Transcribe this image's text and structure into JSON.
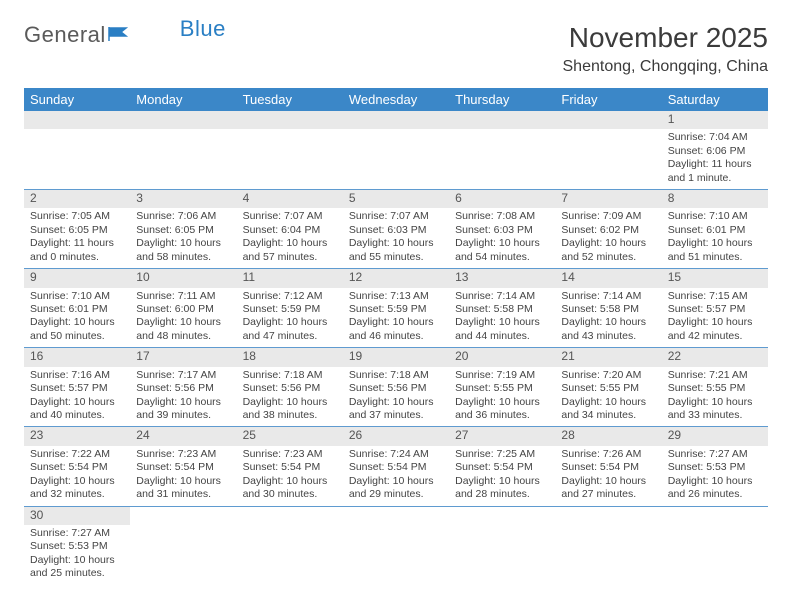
{
  "logo": {
    "general": "General",
    "blue": "Blue"
  },
  "header": {
    "title": "November 2025",
    "location": "Shentong, Chongqing, China"
  },
  "style": {
    "header_bg": "#3b87c8",
    "header_text": "#ffffff",
    "row_border": "#5f9bd0",
    "daynum_bg": "#e9e9e9",
    "body_text": "#444444",
    "title_color": "#3b3b3b",
    "logo_gray": "#5a5a5a",
    "logo_blue": "#2a7fc4",
    "font_family": "Arial"
  },
  "days_of_week": [
    "Sunday",
    "Monday",
    "Tuesday",
    "Wednesday",
    "Thursday",
    "Friday",
    "Saturday"
  ],
  "weeks": [
    [
      null,
      null,
      null,
      null,
      null,
      null,
      {
        "n": "1",
        "sr": "Sunrise: 7:04 AM",
        "ss": "Sunset: 6:06 PM",
        "dl": "Daylight: 11 hours and 1 minute."
      }
    ],
    [
      {
        "n": "2",
        "sr": "Sunrise: 7:05 AM",
        "ss": "Sunset: 6:05 PM",
        "dl": "Daylight: 11 hours and 0 minutes."
      },
      {
        "n": "3",
        "sr": "Sunrise: 7:06 AM",
        "ss": "Sunset: 6:05 PM",
        "dl": "Daylight: 10 hours and 58 minutes."
      },
      {
        "n": "4",
        "sr": "Sunrise: 7:07 AM",
        "ss": "Sunset: 6:04 PM",
        "dl": "Daylight: 10 hours and 57 minutes."
      },
      {
        "n": "5",
        "sr": "Sunrise: 7:07 AM",
        "ss": "Sunset: 6:03 PM",
        "dl": "Daylight: 10 hours and 55 minutes."
      },
      {
        "n": "6",
        "sr": "Sunrise: 7:08 AM",
        "ss": "Sunset: 6:03 PM",
        "dl": "Daylight: 10 hours and 54 minutes."
      },
      {
        "n": "7",
        "sr": "Sunrise: 7:09 AM",
        "ss": "Sunset: 6:02 PM",
        "dl": "Daylight: 10 hours and 52 minutes."
      },
      {
        "n": "8",
        "sr": "Sunrise: 7:10 AM",
        "ss": "Sunset: 6:01 PM",
        "dl": "Daylight: 10 hours and 51 minutes."
      }
    ],
    [
      {
        "n": "9",
        "sr": "Sunrise: 7:10 AM",
        "ss": "Sunset: 6:01 PM",
        "dl": "Daylight: 10 hours and 50 minutes."
      },
      {
        "n": "10",
        "sr": "Sunrise: 7:11 AM",
        "ss": "Sunset: 6:00 PM",
        "dl": "Daylight: 10 hours and 48 minutes."
      },
      {
        "n": "11",
        "sr": "Sunrise: 7:12 AM",
        "ss": "Sunset: 5:59 PM",
        "dl": "Daylight: 10 hours and 47 minutes."
      },
      {
        "n": "12",
        "sr": "Sunrise: 7:13 AM",
        "ss": "Sunset: 5:59 PM",
        "dl": "Daylight: 10 hours and 46 minutes."
      },
      {
        "n": "13",
        "sr": "Sunrise: 7:14 AM",
        "ss": "Sunset: 5:58 PM",
        "dl": "Daylight: 10 hours and 44 minutes."
      },
      {
        "n": "14",
        "sr": "Sunrise: 7:14 AM",
        "ss": "Sunset: 5:58 PM",
        "dl": "Daylight: 10 hours and 43 minutes."
      },
      {
        "n": "15",
        "sr": "Sunrise: 7:15 AM",
        "ss": "Sunset: 5:57 PM",
        "dl": "Daylight: 10 hours and 42 minutes."
      }
    ],
    [
      {
        "n": "16",
        "sr": "Sunrise: 7:16 AM",
        "ss": "Sunset: 5:57 PM",
        "dl": "Daylight: 10 hours and 40 minutes."
      },
      {
        "n": "17",
        "sr": "Sunrise: 7:17 AM",
        "ss": "Sunset: 5:56 PM",
        "dl": "Daylight: 10 hours and 39 minutes."
      },
      {
        "n": "18",
        "sr": "Sunrise: 7:18 AM",
        "ss": "Sunset: 5:56 PM",
        "dl": "Daylight: 10 hours and 38 minutes."
      },
      {
        "n": "19",
        "sr": "Sunrise: 7:18 AM",
        "ss": "Sunset: 5:56 PM",
        "dl": "Daylight: 10 hours and 37 minutes."
      },
      {
        "n": "20",
        "sr": "Sunrise: 7:19 AM",
        "ss": "Sunset: 5:55 PM",
        "dl": "Daylight: 10 hours and 36 minutes."
      },
      {
        "n": "21",
        "sr": "Sunrise: 7:20 AM",
        "ss": "Sunset: 5:55 PM",
        "dl": "Daylight: 10 hours and 34 minutes."
      },
      {
        "n": "22",
        "sr": "Sunrise: 7:21 AM",
        "ss": "Sunset: 5:55 PM",
        "dl": "Daylight: 10 hours and 33 minutes."
      }
    ],
    [
      {
        "n": "23",
        "sr": "Sunrise: 7:22 AM",
        "ss": "Sunset: 5:54 PM",
        "dl": "Daylight: 10 hours and 32 minutes."
      },
      {
        "n": "24",
        "sr": "Sunrise: 7:23 AM",
        "ss": "Sunset: 5:54 PM",
        "dl": "Daylight: 10 hours and 31 minutes."
      },
      {
        "n": "25",
        "sr": "Sunrise: 7:23 AM",
        "ss": "Sunset: 5:54 PM",
        "dl": "Daylight: 10 hours and 30 minutes."
      },
      {
        "n": "26",
        "sr": "Sunrise: 7:24 AM",
        "ss": "Sunset: 5:54 PM",
        "dl": "Daylight: 10 hours and 29 minutes."
      },
      {
        "n": "27",
        "sr": "Sunrise: 7:25 AM",
        "ss": "Sunset: 5:54 PM",
        "dl": "Daylight: 10 hours and 28 minutes."
      },
      {
        "n": "28",
        "sr": "Sunrise: 7:26 AM",
        "ss": "Sunset: 5:54 PM",
        "dl": "Daylight: 10 hours and 27 minutes."
      },
      {
        "n": "29",
        "sr": "Sunrise: 7:27 AM",
        "ss": "Sunset: 5:53 PM",
        "dl": "Daylight: 10 hours and 26 minutes."
      }
    ],
    [
      {
        "n": "30",
        "sr": "Sunrise: 7:27 AM",
        "ss": "Sunset: 5:53 PM",
        "dl": "Daylight: 10 hours and 25 minutes."
      },
      null,
      null,
      null,
      null,
      null,
      null
    ]
  ]
}
